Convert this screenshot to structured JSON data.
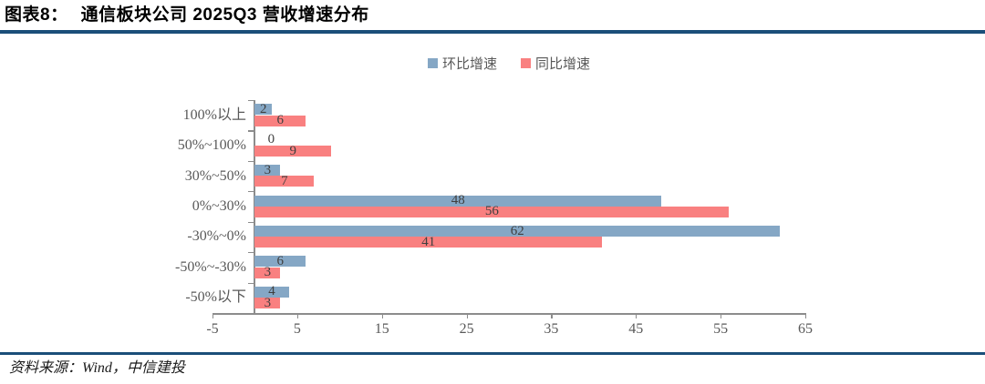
{
  "header": {
    "label": "图表8：",
    "title": "通信板块公司 2025Q3 营收增速分布"
  },
  "footer": {
    "source": "资料来源：Wind，中信建投"
  },
  "chart_data": {
    "type": "bar",
    "orientation": "horizontal",
    "title": "通信板块公司 2025Q3 营收增速分布",
    "categories": [
      "100%以上",
      "50%~100%",
      "30%~50%",
      "0%~30%",
      "-30%~0%",
      "-50%~-30%",
      "-50%以下"
    ],
    "series": [
      {
        "name": "环比增速",
        "color": "#85A7C5",
        "values": [
          2,
          0,
          3,
          48,
          62,
          6,
          4
        ]
      },
      {
        "name": "同比增速",
        "color": "#F98080",
        "values": [
          6,
          9,
          7,
          56,
          41,
          3,
          3
        ]
      }
    ],
    "xlim": [
      -5,
      65
    ],
    "xticks": [
      -5,
      5,
      15,
      25,
      35,
      45,
      55,
      65
    ],
    "legend_position": "top-center",
    "grid": false,
    "value_labels": "center-of-bar"
  },
  "colors": {
    "rule": "#1B4E79",
    "axis": "#8c8c8c",
    "value_label": "#3f3f3f",
    "muted_text": "#595959"
  }
}
